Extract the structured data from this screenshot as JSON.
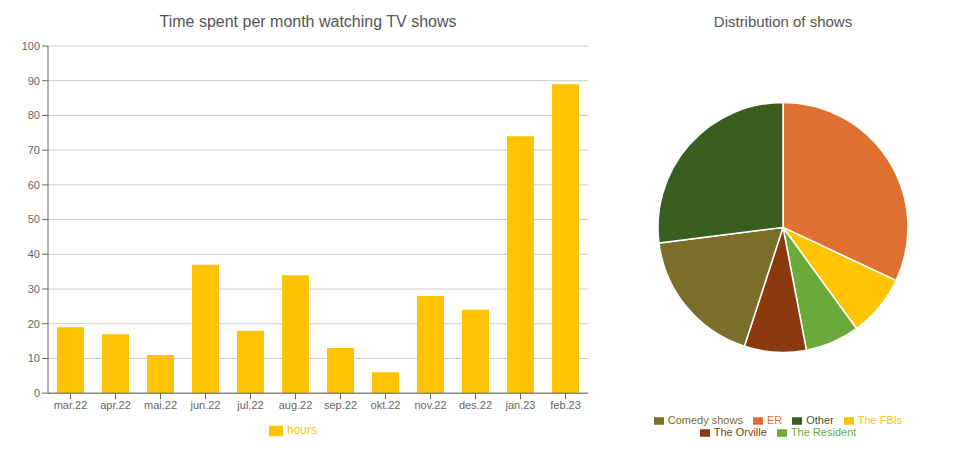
{
  "chart_data": [
    {
      "type": "bar",
      "title": "Time spent per month watching TV shows",
      "categories": [
        "mar.22",
        "apr.22",
        "mai.22",
        "jun.22",
        "jul.22",
        "aug.22",
        "sep.22",
        "okt.22",
        "nov.22",
        "des.22",
        "jan.23",
        "feb.23"
      ],
      "series": [
        {
          "name": "hours",
          "color": "#FFC300",
          "values": [
            19,
            17,
            11,
            37,
            18,
            34,
            13,
            6,
            28,
            24,
            74,
            89
          ]
        }
      ],
      "ylim": [
        0,
        100
      ],
      "yticks": [
        0,
        10,
        20,
        30,
        40,
        50,
        60,
        70,
        80,
        90,
        100
      ],
      "grid": true,
      "legend": "bottom"
    },
    {
      "type": "pie",
      "title": "Distribution of shows",
      "categories": [
        "ER",
        "The FBIs",
        "The Resident",
        "The Orville",
        "Comedy shows",
        "Other"
      ],
      "values": [
        32,
        8,
        7,
        8,
        18,
        27
      ],
      "colors": [
        "#E07030",
        "#FFC300",
        "#6aaa3a",
        "#8B3A0F",
        "#7a6e2a",
        "#3a5e20"
      ],
      "legend": "bottom"
    }
  ]
}
